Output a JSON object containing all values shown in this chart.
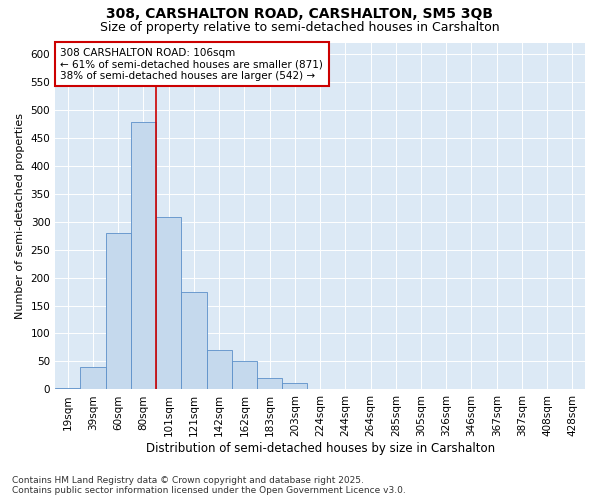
{
  "title1": "308, CARSHALTON ROAD, CARSHALTON, SM5 3QB",
  "title2": "Size of property relative to semi-detached houses in Carshalton",
  "xlabel": "Distribution of semi-detached houses by size in Carshalton",
  "ylabel": "Number of semi-detached properties",
  "categories": [
    "19sqm",
    "39sqm",
    "60sqm",
    "80sqm",
    "101sqm",
    "121sqm",
    "142sqm",
    "162sqm",
    "183sqm",
    "203sqm",
    "224sqm",
    "244sqm",
    "264sqm",
    "285sqm",
    "305sqm",
    "326sqm",
    "346sqm",
    "367sqm",
    "387sqm",
    "408sqm",
    "428sqm"
  ],
  "values": [
    2,
    40,
    280,
    478,
    308,
    175,
    70,
    50,
    20,
    12,
    0,
    0,
    0,
    0,
    0,
    0,
    0,
    0,
    0,
    0,
    0
  ],
  "bar_color": "#c5d9ed",
  "bar_edge_color": "#5b8fc9",
  "vline_color": "#cc0000",
  "vline_x": 3.5,
  "annotation_text": "308 CARSHALTON ROAD: 106sqm\n← 61% of semi-detached houses are smaller (871)\n38% of semi-detached houses are larger (542) →",
  "annotation_box_color": "#ffffff",
  "annotation_box_edge": "#cc0000",
  "ylim": [
    0,
    620
  ],
  "yticks": [
    0,
    50,
    100,
    150,
    200,
    250,
    300,
    350,
    400,
    450,
    500,
    550,
    600
  ],
  "background_color": "#dce9f5",
  "footer_text": "Contains HM Land Registry data © Crown copyright and database right 2025.\nContains public sector information licensed under the Open Government Licence v3.0.",
  "title1_fontsize": 10,
  "title2_fontsize": 9,
  "xlabel_fontsize": 8.5,
  "ylabel_fontsize": 8,
  "tick_fontsize": 7.5,
  "annotation_fontsize": 7.5,
  "footer_fontsize": 6.5
}
